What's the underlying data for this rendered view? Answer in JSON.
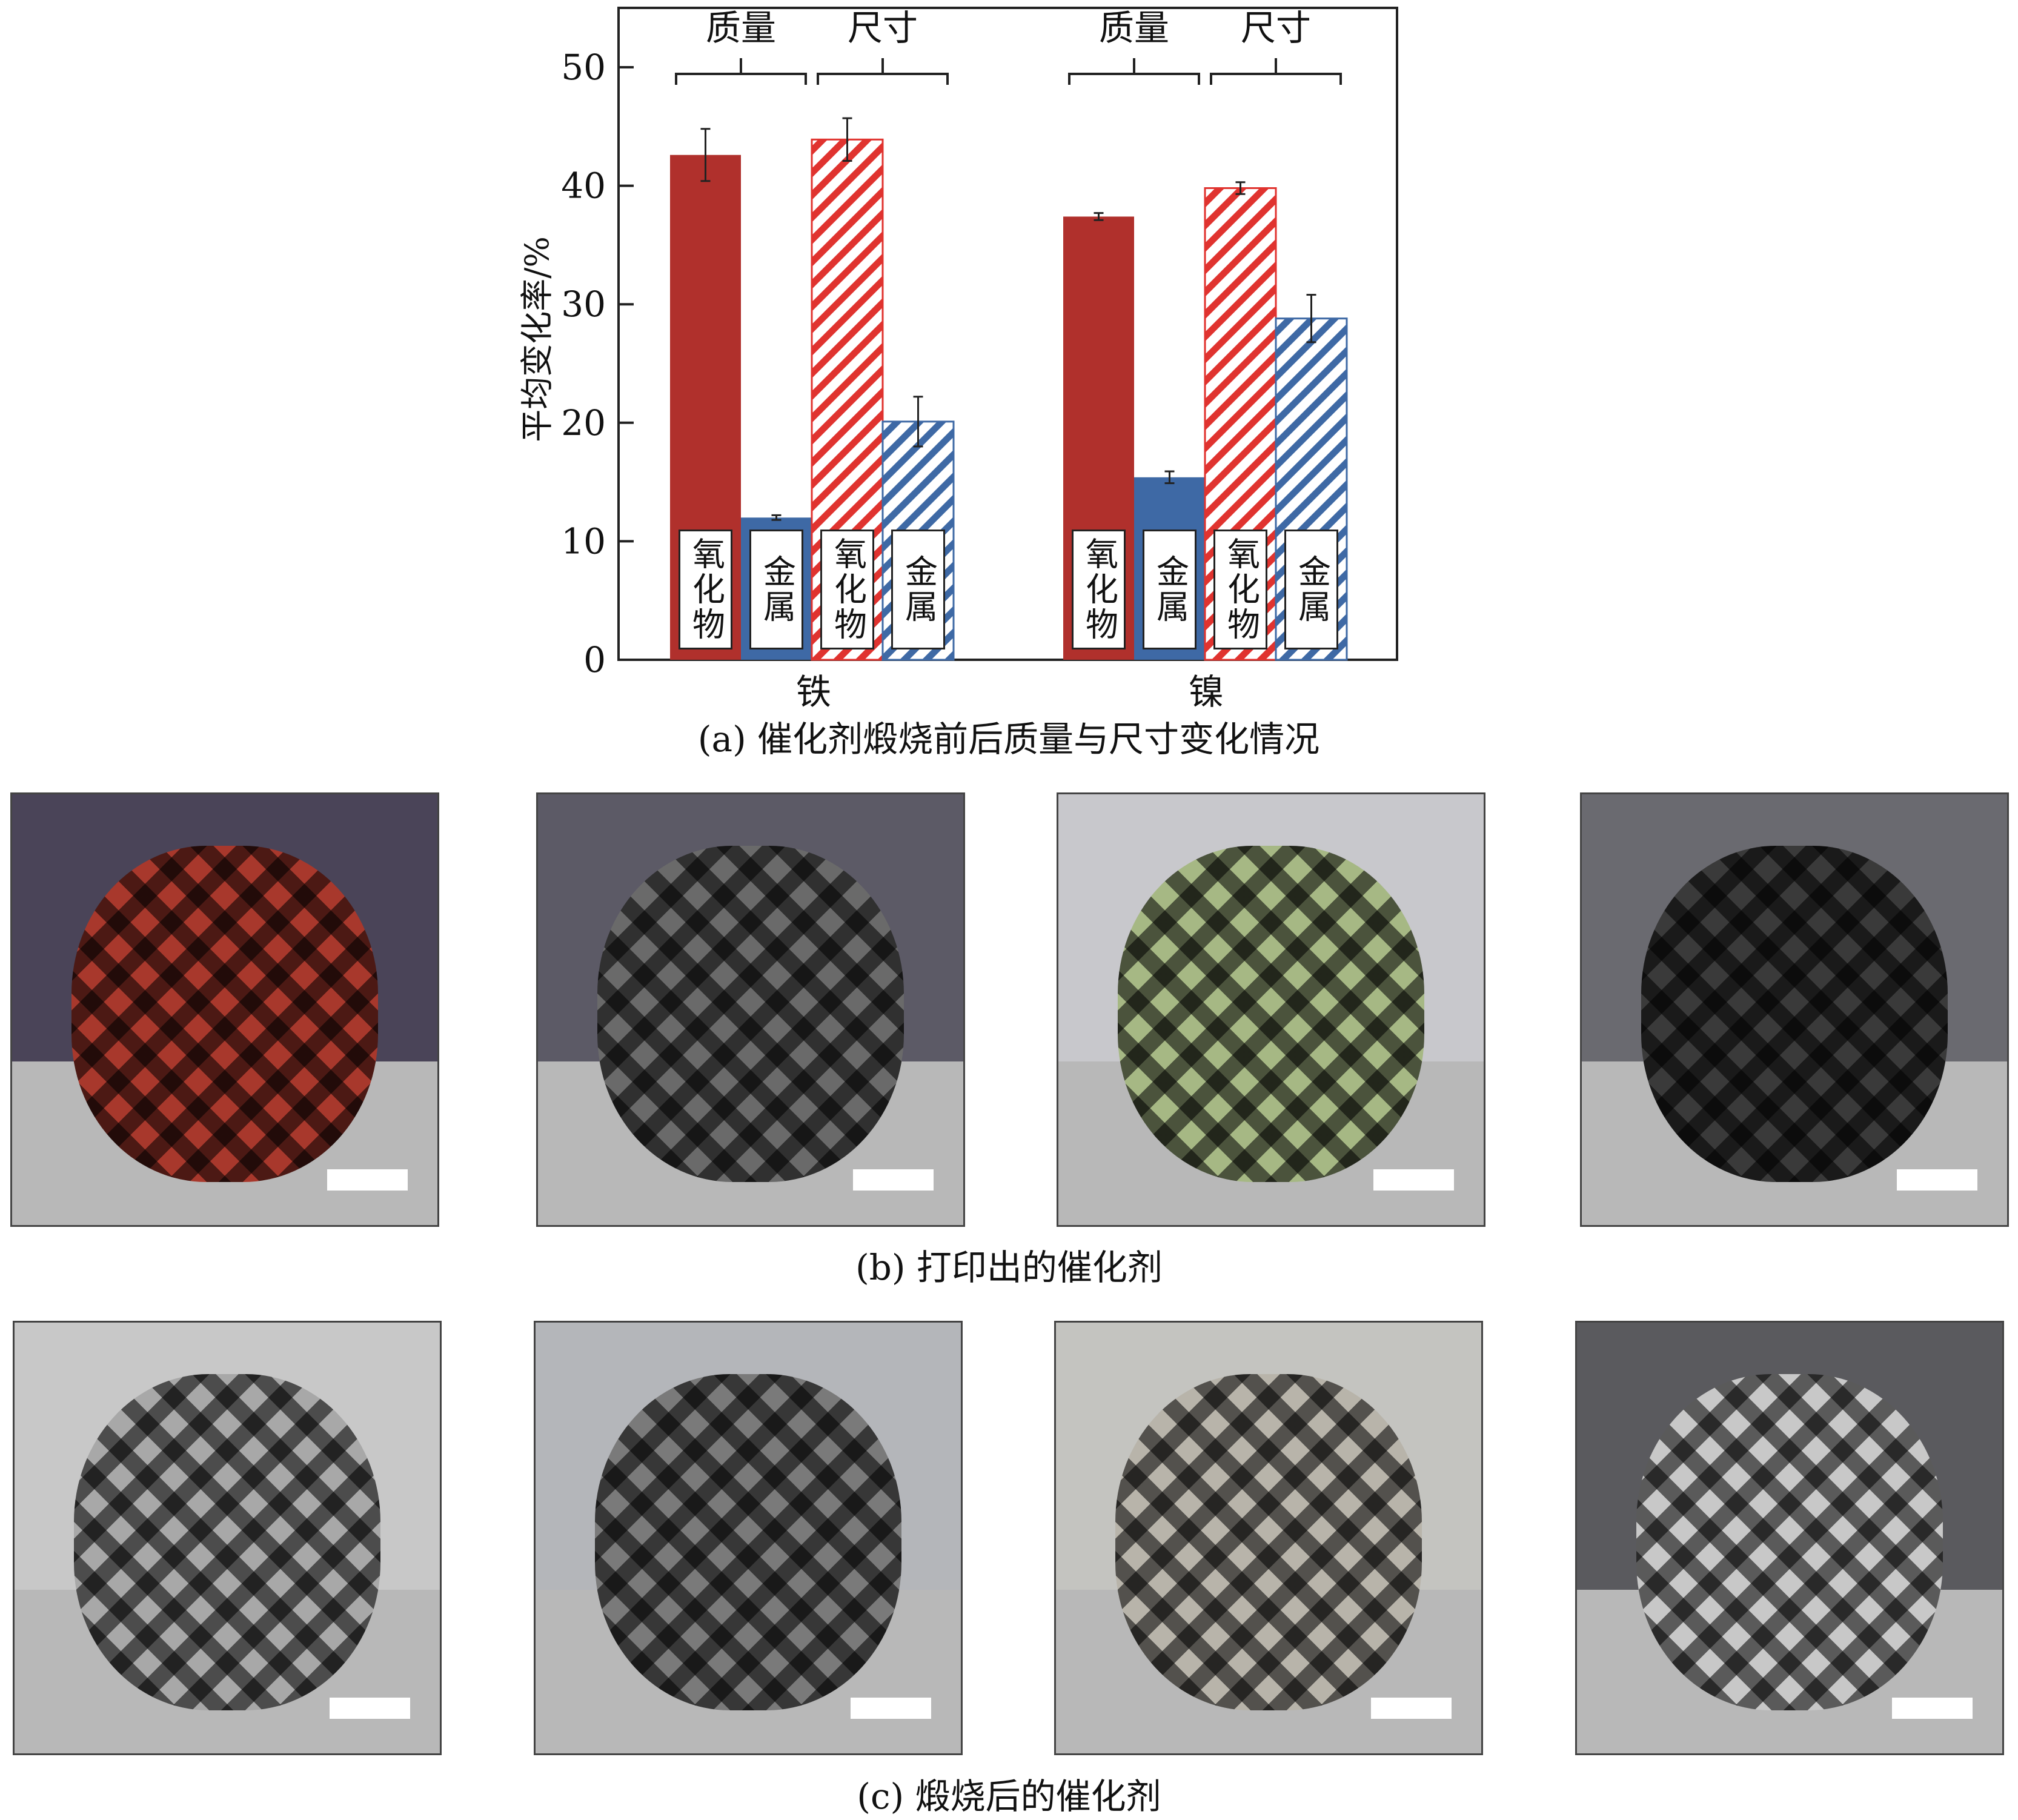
{
  "chart_data": {
    "type": "bar",
    "ylabel": "平均变化率/%",
    "ylim": [
      0,
      55
    ],
    "yticks": [
      "0",
      "10",
      "20",
      "30",
      "40",
      "50"
    ],
    "categories": [
      "铁",
      "镍"
    ],
    "group_headers": [
      "质量",
      "尺寸",
      "质量",
      "尺寸"
    ],
    "bar_labels": [
      "氧化物",
      "金属",
      "氧化物",
      "金属"
    ],
    "series": [
      {
        "label": "氧化物",
        "measure": "质量",
        "fill": "solid",
        "color": "#b0302c",
        "values": [
          42.6,
          37.4
        ],
        "errors": [
          2.2,
          0.3
        ]
      },
      {
        "label": "金属",
        "measure": "质量",
        "fill": "solid",
        "color": "#3e69a5",
        "values": [
          12.0,
          15.4
        ],
        "errors": [
          0.2,
          0.5
        ]
      },
      {
        "label": "氧化物",
        "measure": "尺寸",
        "fill": "hatched",
        "color": "#e0332f",
        "values": [
          43.9,
          39.8
        ],
        "errors": [
          1.8,
          0.5
        ]
      },
      {
        "label": "金属",
        "measure": "尺寸",
        "fill": "hatched",
        "color": "#3e69a5",
        "values": [
          20.1,
          28.8
        ],
        "errors": [
          2.1,
          2.0
        ]
      }
    ],
    "grid": false,
    "title": "(a) 催化剂煅烧前后质量与尺寸变化情况"
  },
  "captions": {
    "b": "(b) 打印出的催化剂",
    "c": "(c) 煅烧后的催化剂"
  },
  "photos": {
    "b": [
      {
        "subject": "printed iron oxide lattice",
        "color": "#a8382c",
        "bg": "#4a4458"
      },
      {
        "subject": "printed lattice grey",
        "color": "#6a6a6a",
        "bg": "#5c5a66"
      },
      {
        "subject": "printed nickel oxide lattice",
        "color": "#a6b884",
        "bg": "#c8c8cc"
      },
      {
        "subject": "printed lattice dark",
        "color": "#3a3a3a",
        "bg": "#6a6a70"
      }
    ],
    "c": [
      {
        "subject": "calcined lattice silver",
        "color": "#a8a8a8",
        "bg": "#c8c8c8"
      },
      {
        "subject": "calcined lattice grey",
        "color": "#7a7a7a",
        "bg": "#b4b6ba"
      },
      {
        "subject": "calcined lattice light",
        "color": "#b8b4aa",
        "bg": "#c4c4c0"
      },
      {
        "subject": "calcined lattice white",
        "color": "#c8c8c8",
        "bg": "#5a5a5e"
      }
    ]
  }
}
